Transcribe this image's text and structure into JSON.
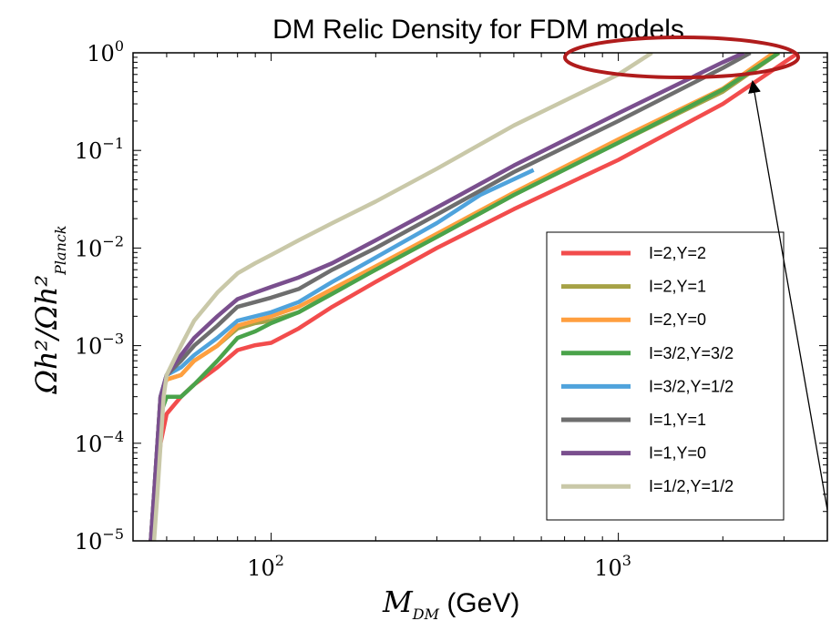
{
  "chart_data": {
    "type": "line",
    "title": "DM Relic Density for FDM models",
    "xlabel": "M_DM (GeV)",
    "ylabel": "Ωh²/Ωh²_Planck",
    "x_scale": "log",
    "y_scale": "log",
    "xlim": [
      40,
      4000
    ],
    "ylim": [
      1e-05,
      1
    ],
    "x_ticks": [
      {
        "value": 100,
        "label": "10",
        "exp": "2"
      },
      {
        "value": 1000,
        "label": "10",
        "exp": "3"
      }
    ],
    "y_ticks": [
      {
        "value": 1,
        "label": "10",
        "exp": "0"
      },
      {
        "value": 0.1,
        "label": "10",
        "exp": "−1"
      },
      {
        "value": 0.01,
        "label": "10",
        "exp": "−2"
      },
      {
        "value": 0.001,
        "label": "10",
        "exp": "−3"
      },
      {
        "value": 0.0001,
        "label": "10",
        "exp": "−4"
      },
      {
        "value": 1e-05,
        "label": "10",
        "exp": "−5"
      }
    ],
    "grid": false,
    "legend_position": "center-right",
    "series": [
      {
        "name": "I=2,Y=2",
        "color": "#f24c4c",
        "points": [
          [
            45,
            1e-05
          ],
          [
            46,
            2e-05
          ],
          [
            48,
            0.0001
          ],
          [
            50,
            0.0002
          ],
          [
            55,
            0.0003
          ],
          [
            60,
            0.0004
          ],
          [
            70,
            0.0006
          ],
          [
            80,
            0.0009
          ],
          [
            90,
            0.00101
          ],
          [
            100,
            0.00107
          ],
          [
            120,
            0.0015
          ],
          [
            150,
            0.0025
          ],
          [
            200,
            0.0045
          ],
          [
            300,
            0.01
          ],
          [
            500,
            0.025
          ],
          [
            1000,
            0.08
          ],
          [
            2000,
            0.3
          ],
          [
            3300,
            1
          ]
        ]
      },
      {
        "name": "I=2,Y=1",
        "color": "#a6a246",
        "points": [
          [
            45,
            1e-05
          ],
          [
            46,
            3e-05
          ],
          [
            48,
            0.0003
          ],
          [
            50,
            0.00045
          ],
          [
            55,
            0.0005
          ],
          [
            60,
            0.0007
          ],
          [
            70,
            0.001
          ],
          [
            80,
            0.0015
          ],
          [
            90,
            0.0017
          ],
          [
            100,
            0.0018
          ],
          [
            120,
            0.0022
          ],
          [
            150,
            0.0035
          ],
          [
            200,
            0.006
          ],
          [
            300,
            0.013
          ],
          [
            500,
            0.035
          ],
          [
            1000,
            0.12
          ],
          [
            2000,
            0.4
          ],
          [
            2900,
            1
          ]
        ]
      },
      {
        "name": "I=2,Y=0",
        "color": "#ff9f3f",
        "points": [
          [
            45,
            1e-05
          ],
          [
            46,
            3e-05
          ],
          [
            48,
            0.0003
          ],
          [
            50,
            0.00045
          ],
          [
            55,
            0.0005
          ],
          [
            60,
            0.0007
          ],
          [
            70,
            0.001
          ],
          [
            80,
            0.0016
          ],
          [
            90,
            0.0018
          ],
          [
            100,
            0.002
          ],
          [
            120,
            0.0025
          ],
          [
            150,
            0.0038
          ],
          [
            200,
            0.0065
          ],
          [
            300,
            0.014
          ],
          [
            500,
            0.037
          ],
          [
            1000,
            0.13
          ],
          [
            2000,
            0.43
          ],
          [
            2800,
            1
          ]
        ]
      },
      {
        "name": "I=3/2,Y=3/2",
        "color": "#4aa34a",
        "points": [
          [
            45,
            1e-05
          ],
          [
            46,
            2e-05
          ],
          [
            48,
            0.0002
          ],
          [
            50,
            0.0003
          ],
          [
            55,
            0.0003
          ],
          [
            60,
            0.0004
          ],
          [
            70,
            0.0007
          ],
          [
            80,
            0.0012
          ],
          [
            90,
            0.0014
          ],
          [
            100,
            0.0017
          ],
          [
            120,
            0.0022
          ],
          [
            150,
            0.0034
          ],
          [
            200,
            0.006
          ],
          [
            300,
            0.013
          ],
          [
            500,
            0.035
          ],
          [
            1000,
            0.12
          ],
          [
            2000,
            0.42
          ],
          [
            2900,
            1
          ]
        ]
      },
      {
        "name": "I=3/2,Y=1/2",
        "color": "#4fa3dc",
        "points": [
          [
            45,
            1e-05
          ],
          [
            46,
            3e-05
          ],
          [
            48,
            0.0003
          ],
          [
            50,
            0.0005
          ],
          [
            55,
            0.0006
          ],
          [
            60,
            0.0008
          ],
          [
            70,
            0.0012
          ],
          [
            80,
            0.0018
          ],
          [
            90,
            0.002
          ],
          [
            100,
            0.0022
          ],
          [
            120,
            0.0028
          ],
          [
            150,
            0.0045
          ],
          [
            200,
            0.008
          ],
          [
            300,
            0.018
          ],
          [
            400,
            0.035
          ],
          [
            570,
            0.063
          ]
        ]
      },
      {
        "name": "I=1,Y=1",
        "color": "#6e6e6e",
        "points": [
          [
            45,
            1e-05
          ],
          [
            46,
            3e-05
          ],
          [
            48,
            0.0003
          ],
          [
            50,
            0.0005
          ],
          [
            55,
            0.0007
          ],
          [
            60,
            0.001
          ],
          [
            70,
            0.0016
          ],
          [
            80,
            0.0025
          ],
          [
            90,
            0.0028
          ],
          [
            100,
            0.0031
          ],
          [
            120,
            0.0038
          ],
          [
            150,
            0.006
          ],
          [
            200,
            0.01
          ],
          [
            300,
            0.022
          ],
          [
            500,
            0.06
          ],
          [
            1000,
            0.2
          ],
          [
            2000,
            0.7
          ],
          [
            2400,
            1
          ]
        ]
      },
      {
        "name": "I=1,Y=0",
        "color": "#7a4f8e",
        "points": [
          [
            45,
            1e-05
          ],
          [
            46,
            3e-05
          ],
          [
            48,
            0.0003
          ],
          [
            50,
            0.0005
          ],
          [
            55,
            0.0008
          ],
          [
            60,
            0.0012
          ],
          [
            70,
            0.002
          ],
          [
            80,
            0.003
          ],
          [
            90,
            0.0035
          ],
          [
            100,
            0.004
          ],
          [
            120,
            0.005
          ],
          [
            150,
            0.007
          ],
          [
            200,
            0.012
          ],
          [
            300,
            0.026
          ],
          [
            500,
            0.07
          ],
          [
            1000,
            0.24
          ],
          [
            2000,
            0.8
          ],
          [
            2300,
            1
          ]
        ]
      },
      {
        "name": "I=1/2,Y=1/2",
        "color": "#c9c8a8",
        "points": [
          [
            46,
            1e-05
          ],
          [
            47,
            3e-05
          ],
          [
            49,
            0.0003
          ],
          [
            50,
            0.0005
          ],
          [
            55,
            0.001
          ],
          [
            60,
            0.0018
          ],
          [
            70,
            0.0035
          ],
          [
            80,
            0.0055
          ],
          [
            90,
            0.007
          ],
          [
            100,
            0.0085
          ],
          [
            120,
            0.012
          ],
          [
            150,
            0.018
          ],
          [
            200,
            0.03
          ],
          [
            300,
            0.065
          ],
          [
            500,
            0.18
          ],
          [
            1000,
            0.6
          ],
          [
            1250,
            1
          ]
        ]
      }
    ],
    "annotations": [
      {
        "type": "ellipse",
        "color": "#b01c1c",
        "description": "highlight"
      },
      {
        "type": "arrow",
        "color": "#000000"
      }
    ]
  }
}
